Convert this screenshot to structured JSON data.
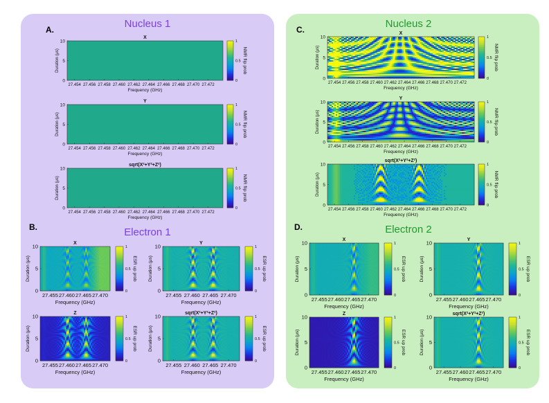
{
  "colors": {
    "panel_a_bg": "#d8ccf7",
    "panel_c_bg": "#c9eec0",
    "title_purple": "#7b3fe4",
    "title_green": "#1f9a2e",
    "uniform_map": "#21a98b",
    "colormap": [
      "#3a0a8a",
      "#1f2fe0",
      "#0a7ef2",
      "#0aa6c8",
      "#22b795",
      "#6fcb55",
      "#c8e030",
      "#f6f90e"
    ]
  },
  "sections": [
    {
      "letter": "A.",
      "title": "Nucleus 1"
    },
    {
      "letter": "B.",
      "title": "Electron 1"
    },
    {
      "letter": "C.",
      "title": "Nucleus 2"
    },
    {
      "letter": "D.",
      "title": "Electron 2"
    }
  ],
  "chart_data": [
    {
      "id": "A1",
      "type": "heatmap",
      "title": "X",
      "xlabel": "Frequency (GHz)",
      "ylabel": "Duration (μs)",
      "xticks": [
        "27.454",
        "27.456",
        "27.458",
        "27.460",
        "27.462",
        "27.464",
        "27.466",
        "27.468",
        "27.470",
        "27.472"
      ],
      "xlim": [
        27.453,
        27.474
      ],
      "ylim": [
        0,
        10
      ],
      "yticks": [
        "0",
        "5",
        "10"
      ],
      "colorbar": {
        "label": "NMR flip prob",
        "ticks": [
          "0",
          "0.5",
          "1"
        ]
      },
      "pattern": "uniform",
      "fill_value": 0.5
    },
    {
      "id": "A2",
      "type": "heatmap",
      "title": "Y",
      "xlabel": "Frequency (GHz)",
      "ylabel": "Duration (μs)",
      "xticks": [
        "27.454",
        "27.456",
        "27.458",
        "27.460",
        "27.462",
        "27.464",
        "27.466",
        "27.468",
        "27.470",
        "27.472"
      ],
      "xlim": [
        27.453,
        27.474
      ],
      "ylim": [
        0,
        10
      ],
      "yticks": [
        "0",
        "5",
        "10"
      ],
      "colorbar": {
        "label": "NMR flip prob",
        "ticks": [
          "0",
          "0.5",
          "1"
        ]
      },
      "pattern": "uniform",
      "fill_value": 0.5
    },
    {
      "id": "A3",
      "type": "heatmap",
      "title": "sqrt(X²+Y²+Z²)",
      "xlabel": "Frequency (GHz)",
      "ylabel": "Duration (μs)",
      "xticks": [
        "27.454",
        "27.456",
        "27.458",
        "27.460",
        "27.462",
        "27.464",
        "27.466",
        "27.468",
        "27.470",
        "27.472"
      ],
      "xlim": [
        27.453,
        27.474
      ],
      "ylim": [
        0,
        10
      ],
      "yticks": [
        "0",
        "5",
        "10"
      ],
      "colorbar": {
        "label": "NMR flip prob",
        "ticks": [
          "0",
          "0.5",
          "1"
        ]
      },
      "pattern": "uniform",
      "fill_value": 0.5
    },
    {
      "id": "B1",
      "type": "heatmap",
      "title": "X",
      "xlabel": "Frequency (GHz)",
      "ylabel": "Duration (μs)",
      "xticks": [
        "27.455",
        "27.460",
        "27.465",
        "27.470"
      ],
      "xlim": [
        27.452,
        27.473
      ],
      "ylim": [
        0,
        10
      ],
      "yticks": [
        "0",
        "5",
        "10"
      ],
      "colorbar": {
        "label": "ESR up prob",
        "ticks": [
          "0",
          "0.5",
          "1"
        ]
      },
      "pattern": "esr-x",
      "resonances": [
        27.4603,
        27.4658
      ]
    },
    {
      "id": "B2",
      "type": "heatmap",
      "title": "Y",
      "xlabel": "Frequency (GHz)",
      "ylabel": "Duration (μs)",
      "xticks": [
        "27.455",
        "27.460",
        "27.465",
        "27.470"
      ],
      "xlim": [
        27.452,
        27.473
      ],
      "ylim": [
        0,
        10
      ],
      "yticks": [
        "0",
        "5",
        "10"
      ],
      "colorbar": {
        "label": "ESR up prob",
        "ticks": [
          "0",
          "0.5",
          "1"
        ]
      },
      "pattern": "esr-y",
      "resonances": [
        27.4603,
        27.4658
      ]
    },
    {
      "id": "B3",
      "type": "heatmap",
      "title": "Z",
      "xlabel": "Frequency (GHz)",
      "ylabel": "Duration (μs)",
      "xticks": [
        "27.455",
        "27.460",
        "27.465",
        "27.470"
      ],
      "xlim": [
        27.452,
        27.473
      ],
      "ylim": [
        0,
        10
      ],
      "yticks": [
        "0",
        "5",
        "10"
      ],
      "colorbar": {
        "label": "ESR up prob",
        "ticks": [
          "0",
          "0.5",
          "1"
        ]
      },
      "pattern": "esr-z",
      "resonances": [
        27.4603,
        27.4658
      ]
    },
    {
      "id": "B4",
      "type": "heatmap",
      "title": "sqrt(X²+Y²+Z²)",
      "xlabel": "Frequency (GHz)",
      "ylabel": "Duration (μs)",
      "xticks": [
        "27.455",
        "27.460",
        "27.465",
        "27.470"
      ],
      "xlim": [
        27.452,
        27.473
      ],
      "ylim": [
        0,
        10
      ],
      "yticks": [
        "0",
        "5",
        "10"
      ],
      "colorbar": {
        "label": "ESR up prob",
        "ticks": [
          "0",
          "0.5",
          "1"
        ]
      },
      "pattern": "esr-y",
      "resonances": [
        27.4603,
        27.4658
      ]
    },
    {
      "id": "C1",
      "type": "heatmap",
      "title": "X",
      "xlabel": "Frequency (GHz)",
      "ylabel": "Duration (μs)",
      "xticks": [
        "27.454",
        "27.456",
        "27.458",
        "27.460",
        "27.462",
        "27.464",
        "27.466",
        "27.468",
        "27.470",
        "27.472"
      ],
      "xlim": [
        27.453,
        27.474
      ],
      "ylim": [
        0,
        10
      ],
      "yticks": [
        "0",
        "5",
        "10"
      ],
      "colorbar": {
        "label": "NMR flip prob",
        "ticks": [
          "0",
          "0.5",
          "1"
        ]
      },
      "pattern": "nmr2-x",
      "resonances": [
        27.4606,
        27.4661
      ]
    },
    {
      "id": "C2",
      "type": "heatmap",
      "title": "Y",
      "xlabel": "Frequency (GHz)",
      "ylabel": "Duration (μs)",
      "xticks": [
        "27.454",
        "27.456",
        "27.458",
        "27.460",
        "27.462",
        "27.464",
        "27.466",
        "27.468",
        "27.470",
        "27.472"
      ],
      "xlim": [
        27.453,
        27.474
      ],
      "ylim": [
        0,
        10
      ],
      "yticks": [
        "0",
        "5",
        "10"
      ],
      "colorbar": {
        "label": "NMR flip prob",
        "ticks": [
          "0",
          "0.5",
          "1"
        ]
      },
      "pattern": "nmr2-y",
      "resonances": [
        27.4606,
        27.4661
      ]
    },
    {
      "id": "C3",
      "type": "heatmap",
      "title": "sqrt(X²+Y²+Z²)",
      "xlabel": "Frequency (GHz)",
      "ylabel": "Duration (μs)",
      "xticks": [
        "27.454",
        "27.456",
        "27.458",
        "27.460",
        "27.462",
        "27.464",
        "27.466",
        "27.468",
        "27.470",
        "27.472"
      ],
      "xlim": [
        27.453,
        27.474
      ],
      "ylim": [
        0,
        10
      ],
      "yticks": [
        "0",
        "5",
        "10"
      ],
      "colorbar": {
        "label": "NMR flip prob",
        "ticks": [
          "0",
          "0.5",
          "1"
        ]
      },
      "pattern": "nmr2-s",
      "resonances": [
        27.4606,
        27.4661
      ]
    },
    {
      "id": "D1",
      "type": "heatmap",
      "title": "X",
      "xlabel": "Frequency (GHz)",
      "ylabel": "Duration (μs)",
      "xticks": [
        "27.455",
        "27.460",
        "27.465",
        "27.470"
      ],
      "xlim": [
        27.452,
        27.473
      ],
      "ylim": [
        0,
        10
      ],
      "yticks": [
        "0",
        "5",
        "10"
      ],
      "colorbar": {
        "label": "ESR up prob",
        "ticks": [
          "0",
          "0.5",
          "1"
        ]
      },
      "pattern": "esr2-x",
      "resonances": [
        27.4655
      ]
    },
    {
      "id": "D2",
      "type": "heatmap",
      "title": "Y",
      "xlabel": "Frequency (GHz)",
      "ylabel": "Duration (μs)",
      "xticks": [
        "27.455",
        "27.460",
        "27.465",
        "27.470"
      ],
      "xlim": [
        27.452,
        27.473
      ],
      "ylim": [
        0,
        10
      ],
      "yticks": [
        "0",
        "5",
        "10"
      ],
      "colorbar": {
        "label": "ESR up prob",
        "ticks": [
          "0",
          "0.5",
          "1"
        ]
      },
      "pattern": "esr2-y",
      "resonances": [
        27.4655
      ]
    },
    {
      "id": "D3",
      "type": "heatmap",
      "title": "Z",
      "xlabel": "Frequency (GHz)",
      "ylabel": "Duration (μs)",
      "xticks": [
        "27.455",
        "27.460",
        "27.465",
        "27.470"
      ],
      "xlim": [
        27.452,
        27.473
      ],
      "ylim": [
        0,
        10
      ],
      "yticks": [
        "0",
        "5",
        "10"
      ],
      "colorbar": {
        "label": "ESR up prob",
        "ticks": [
          "0",
          "0.5",
          "1"
        ]
      },
      "pattern": "esr2-z",
      "resonances": [
        27.4655
      ]
    },
    {
      "id": "D4",
      "type": "heatmap",
      "title": "sqrt(X²+Y²+Z²)",
      "xlabel": "Frequency (GHz)",
      "ylabel": "Duration (μs)",
      "xticks": [
        "27.455",
        "27.460",
        "27.465",
        "27.470"
      ],
      "xlim": [
        27.452,
        27.473
      ],
      "ylim": [
        0,
        10
      ],
      "yticks": [
        "0",
        "5",
        "10"
      ],
      "colorbar": {
        "label": "ESR up prob",
        "ticks": [
          "0",
          "0.5",
          "1"
        ]
      },
      "pattern": "esr2-y",
      "resonances": [
        27.4655
      ]
    }
  ]
}
